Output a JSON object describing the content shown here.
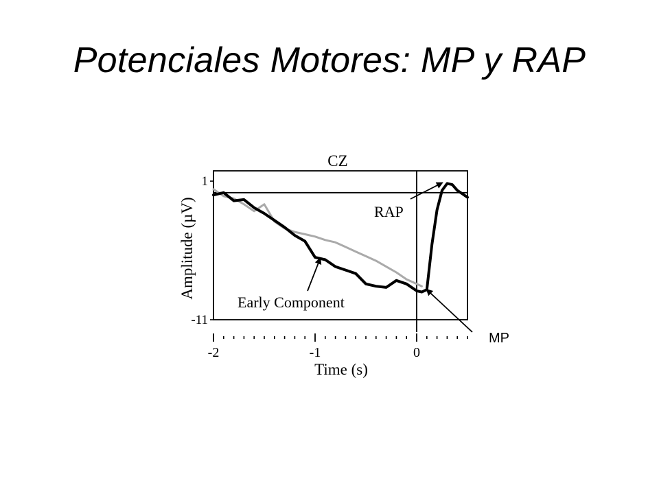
{
  "slide": {
    "title": "Potenciales Motores: MP y RAP"
  },
  "chart_data": {
    "type": "line",
    "title": "CZ",
    "xlabel": "Time (s)",
    "ylabel": "Amplitude (µV)",
    "xlim": [
      -2,
      0.5
    ],
    "ylim": [
      -11,
      1
    ],
    "x_tick_labels": [
      "-2",
      "-1",
      "0"
    ],
    "y_tick_labels": [
      "1",
      "-11"
    ],
    "grid": false,
    "series": [
      {
        "color": "#000000",
        "x": [
          -2.0,
          -1.9,
          -1.8,
          -1.7,
          -1.6,
          -1.5,
          -1.4,
          -1.3,
          -1.2,
          -1.1,
          -1.0,
          -0.9,
          -0.8,
          -0.7,
          -0.6,
          -0.5,
          -0.4,
          -0.3,
          -0.2,
          -0.1,
          0.0,
          0.05,
          0.1,
          0.15,
          0.2,
          0.25,
          0.3,
          0.35,
          0.4,
          0.45,
          0.5
        ],
        "y": [
          -0.2,
          0.0,
          -0.7,
          -0.6,
          -1.3,
          -1.8,
          -2.4,
          -3.0,
          -3.7,
          -4.2,
          -5.6,
          -5.8,
          -6.4,
          -6.7,
          -7.0,
          -7.9,
          -8.1,
          -8.2,
          -7.6,
          -7.9,
          -8.5,
          -8.6,
          -8.4,
          -4.5,
          -1.5,
          0.2,
          0.8,
          0.7,
          0.2,
          -0.1,
          -0.4
        ]
      },
      {
        "color": "#aaaaaa",
        "x": [
          -2.0,
          -1.9,
          -1.8,
          -1.7,
          -1.6,
          -1.5,
          -1.4,
          -1.3,
          -1.2,
          -1.1,
          -1.0,
          -0.9,
          -0.8,
          -0.7,
          -0.6,
          -0.5,
          -0.4,
          -0.3,
          -0.2,
          -0.1,
          0.0,
          0.05
        ],
        "y": [
          0.3,
          -0.3,
          -0.5,
          -1.0,
          -1.6,
          -1.0,
          -2.5,
          -3.1,
          -3.4,
          -3.6,
          -3.8,
          -4.1,
          -4.3,
          -4.7,
          -5.1,
          -5.5,
          -5.9,
          -6.4,
          -6.9,
          -7.5,
          -7.9,
          -8.1
        ]
      }
    ],
    "annotations": [
      {
        "text": "RAP",
        "arrow_to": [
          0.25,
          0.85
        ],
        "text_at": [
          -0.15,
          -1.2
        ]
      },
      {
        "text": "Early Component",
        "arrow_to": [
          -0.95,
          -5.7
        ],
        "text_at": [
          -1.35,
          -8.0
        ]
      },
      {
        "text": "MP",
        "arrow_to": [
          0.1,
          -8.4
        ],
        "text_at": [
          0.75,
          -10.3
        ]
      }
    ]
  }
}
